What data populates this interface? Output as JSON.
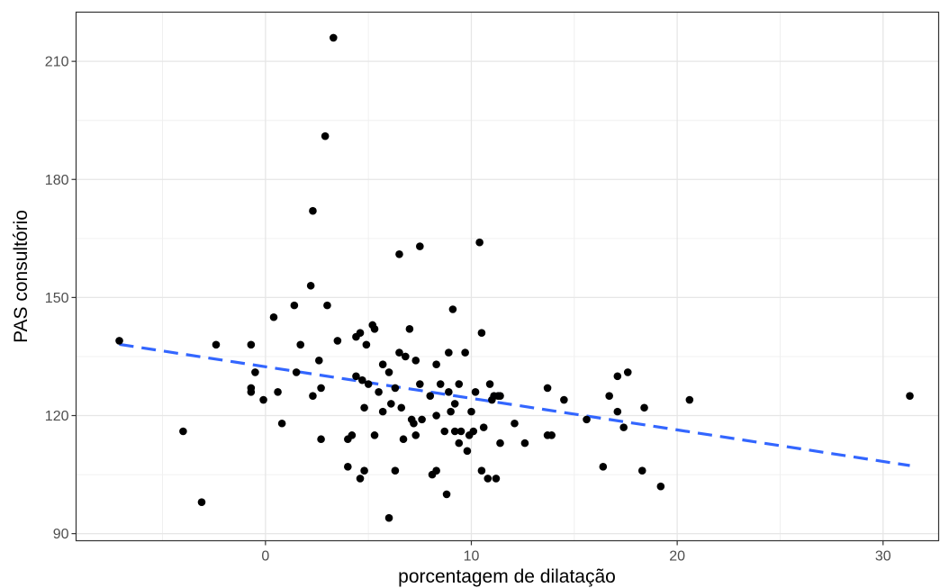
{
  "chart_data": {
    "type": "scatter",
    "title": "",
    "xlabel": "porcentagem de dilatação",
    "ylabel": "PAS consultório",
    "xlim": [
      -9.2,
      32.7
    ],
    "ylim": [
      88.2,
      222.5
    ],
    "x_ticks": [
      0,
      10,
      20,
      30
    ],
    "y_ticks": [
      90,
      120,
      150,
      180,
      210
    ],
    "x_minor": [
      -5,
      5,
      15,
      25
    ],
    "y_minor": [
      105,
      135,
      165,
      195
    ],
    "grid": true,
    "legend": "none",
    "theme": "bw",
    "point_color": "#000000",
    "trend_color": "#3366FF",
    "trend_style": "dashed",
    "trendline": {
      "x": [
        -7.1,
        31.3
      ],
      "y": [
        138.1,
        107.3
      ]
    },
    "points": [
      [
        -7.1,
        139
      ],
      [
        -4.0,
        116
      ],
      [
        -3.1,
        98
      ],
      [
        -2.4,
        138
      ],
      [
        -0.7,
        138
      ],
      [
        -0.7,
        126
      ],
      [
        -0.7,
        127
      ],
      [
        -0.5,
        131
      ],
      [
        -0.1,
        124
      ],
      [
        0.4,
        145
      ],
      [
        0.6,
        126
      ],
      [
        0.8,
        118
      ],
      [
        1.4,
        148
      ],
      [
        1.5,
        131
      ],
      [
        1.7,
        138
      ],
      [
        2.2,
        153
      ],
      [
        2.3,
        172
      ],
      [
        2.3,
        125
      ],
      [
        2.6,
        134
      ],
      [
        2.7,
        127
      ],
      [
        2.7,
        114
      ],
      [
        2.9,
        191
      ],
      [
        3.0,
        148
      ],
      [
        3.3,
        216
      ],
      [
        3.5,
        139
      ],
      [
        4.0,
        114
      ],
      [
        4.0,
        107
      ],
      [
        4.2,
        115
      ],
      [
        4.4,
        140
      ],
      [
        4.4,
        130
      ],
      [
        4.6,
        141
      ],
      [
        4.6,
        104
      ],
      [
        4.7,
        129
      ],
      [
        4.8,
        122
      ],
      [
        4.8,
        106
      ],
      [
        4.9,
        138
      ],
      [
        5.0,
        128
      ],
      [
        5.2,
        143
      ],
      [
        5.3,
        142
      ],
      [
        5.3,
        115
      ],
      [
        5.5,
        126
      ],
      [
        5.7,
        133
      ],
      [
        5.7,
        121
      ],
      [
        6.0,
        131
      ],
      [
        6.0,
        94
      ],
      [
        6.1,
        123
      ],
      [
        6.3,
        127
      ],
      [
        6.3,
        106
      ],
      [
        6.5,
        161
      ],
      [
        6.5,
        136
      ],
      [
        6.6,
        122
      ],
      [
        6.7,
        114
      ],
      [
        6.8,
        135
      ],
      [
        7.0,
        142
      ],
      [
        7.1,
        119
      ],
      [
        7.2,
        118
      ],
      [
        7.3,
        134
      ],
      [
        7.3,
        115
      ],
      [
        7.5,
        128
      ],
      [
        7.5,
        163
      ],
      [
        7.6,
        119
      ],
      [
        8.0,
        125
      ],
      [
        8.1,
        105
      ],
      [
        8.3,
        106
      ],
      [
        8.3,
        120
      ],
      [
        8.3,
        133
      ],
      [
        8.5,
        128
      ],
      [
        8.7,
        116
      ],
      [
        8.8,
        100
      ],
      [
        8.9,
        126
      ],
      [
        8.9,
        136
      ],
      [
        9.0,
        121
      ],
      [
        9.1,
        147
      ],
      [
        9.2,
        123
      ],
      [
        9.2,
        116
      ],
      [
        9.4,
        128
      ],
      [
        9.5,
        116
      ],
      [
        9.4,
        113
      ],
      [
        9.7,
        136
      ],
      [
        9.8,
        111
      ],
      [
        10.0,
        121
      ],
      [
        9.9,
        115
      ],
      [
        10.1,
        116
      ],
      [
        10.2,
        126
      ],
      [
        10.4,
        164
      ],
      [
        10.5,
        141
      ],
      [
        10.5,
        106
      ],
      [
        10.6,
        117
      ],
      [
        10.8,
        104
      ],
      [
        10.9,
        128
      ],
      [
        11.0,
        124
      ],
      [
        11.1,
        125
      ],
      [
        11.2,
        104
      ],
      [
        11.3,
        125
      ],
      [
        11.4,
        113
      ],
      [
        11.4,
        125
      ],
      [
        12.1,
        118
      ],
      [
        12.6,
        113
      ],
      [
        13.7,
        127
      ],
      [
        13.7,
        115
      ],
      [
        13.9,
        115
      ],
      [
        14.5,
        124
      ],
      [
        15.6,
        119
      ],
      [
        16.4,
        107
      ],
      [
        16.7,
        125
      ],
      [
        17.1,
        130
      ],
      [
        17.1,
        121
      ],
      [
        17.4,
        117
      ],
      [
        17.6,
        131
      ],
      [
        18.3,
        106
      ],
      [
        18.4,
        122
      ],
      [
        19.2,
        102
      ],
      [
        20.6,
        124
      ],
      [
        31.3,
        125
      ]
    ]
  }
}
